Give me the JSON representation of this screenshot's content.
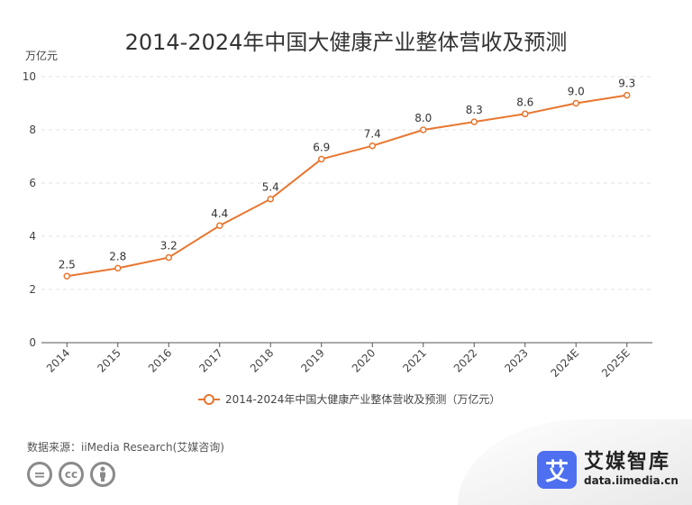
{
  "chart_data": {
    "type": "line",
    "title": "2014-2024年中国大健康产业整体营收及预测",
    "y_unit": "万亿元",
    "categories": [
      "2014",
      "2015",
      "2016",
      "2017",
      "2018",
      "2019",
      "2020",
      "2021",
      "2022",
      "2023",
      "2024E",
      "2025E"
    ],
    "series": [
      {
        "name": "2014-2024年中国大健康产业整体营收及预测（万亿元）",
        "values": [
          2.5,
          2.8,
          3.2,
          4.4,
          5.4,
          6.9,
          7.4,
          8.0,
          8.3,
          8.6,
          9.0,
          9.3
        ],
        "labels": [
          "2.5",
          "2.8",
          "3.2",
          "4.4",
          "5.4",
          "6.9",
          "7.4",
          "8.0",
          "8.3",
          "8.6",
          "9.0",
          "9.3"
        ],
        "color": "#e8762f"
      }
    ],
    "ylim": [
      0,
      10
    ],
    "yticks": [
      0,
      2,
      4,
      6,
      8,
      10
    ],
    "grid": true,
    "legend_position": "bottom"
  },
  "source": "数据来源：iiMedia Research(艾媒咨询)",
  "brand": {
    "logo_char": "艾",
    "name": "艾媒智库",
    "url": "data.iimedia.cn",
    "color": "#4d6ff0"
  },
  "license_icons": [
    "=",
    "cc",
    "person-icon"
  ]
}
